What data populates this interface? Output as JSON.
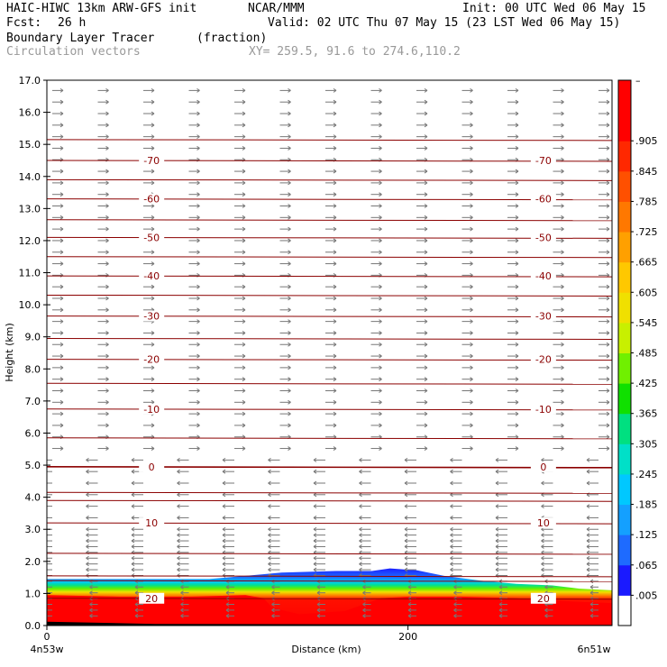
{
  "header": {
    "model": "HAIC-HIWC 13km ARW-GFS init",
    "org": "NCAR/MMM",
    "init": "Init: 00 UTC Wed 06 May 15",
    "fcst_label": "Fcst:",
    "fcst_value": "26 h",
    "valid": "Valid: 02 UTC Thu 07 May 15 (23 LST Wed 06 May 15)",
    "field": "Boundary Layer Tracer",
    "units": "(fraction)",
    "overlay": "Circulation vectors",
    "xy": "XY= 259.5, 91.6 to 274.6,110.2"
  },
  "chart_data": {
    "type": "heatmap",
    "title": "Boundary Layer Tracer",
    "xlabel": "Distance (km)",
    "ylabel": "Height (km)",
    "xlim": [
      0,
      313
    ],
    "ylim": [
      0,
      17
    ],
    "x_ticks": [
      {
        "value": 0,
        "label": "0"
      },
      {
        "value": 200,
        "label": "200"
      }
    ],
    "x_end_labels": {
      "left": "4n53w",
      "right": "6n51w"
    },
    "y_ticks": [
      "0.0",
      "1.0",
      "2.0",
      "3.0",
      "4.0",
      "5.0",
      "6.0",
      "7.0",
      "8.0",
      "9.0",
      "10.0",
      "11.0",
      "12.0",
      "13.0",
      "14.0",
      "15.0",
      "16.0",
      "17.0"
    ],
    "colorbar": {
      "labels": [
        ".005",
        ".065",
        ".125",
        ".185",
        ".245",
        ".305",
        ".365",
        ".425",
        ".485",
        ".545",
        ".605",
        ".665",
        ".725",
        ".785",
        ".845",
        ".905"
      ],
      "top_label": "–",
      "colors": [
        "#ffffff",
        "#1a1aff",
        "#1e6bff",
        "#14a0ff",
        "#00c8ff",
        "#00e0c8",
        "#00e080",
        "#10e000",
        "#70f000",
        "#c8f000",
        "#f0e000",
        "#ffc800",
        "#ffa000",
        "#ff7800",
        "#ff5000",
        "#ff2800",
        "#ff0000",
        "#ff0000"
      ]
    },
    "temperature_contours": [
      {
        "label": "20",
        "height": 0.85
      },
      {
        "label": "10",
        "height": 3.2
      },
      {
        "label": "0",
        "height": 4.95
      },
      {
        "label": "-10",
        "height": 6.75
      },
      {
        "label": "-20",
        "height": 8.3
      },
      {
        "label": "-30",
        "height": 9.65
      },
      {
        "label": "-40",
        "height": 10.9
      },
      {
        "label": "-50",
        "height": 12.1
      },
      {
        "label": "-60",
        "height": 13.3
      },
      {
        "label": "-70",
        "height": 14.5
      }
    ],
    "tracer_top_km": [
      [
        0,
        1.45
      ],
      [
        30,
        1.45
      ],
      [
        60,
        1.45
      ],
      [
        90,
        1.45
      ],
      [
        110,
        1.55
      ],
      [
        130,
        1.65
      ],
      [
        160,
        1.7
      ],
      [
        180,
        1.7
      ],
      [
        190,
        1.78
      ],
      [
        205,
        1.72
      ],
      [
        220,
        1.55
      ],
      [
        240,
        1.4
      ],
      [
        260,
        1.3
      ],
      [
        280,
        1.25
      ],
      [
        295,
        1.15
      ],
      [
        313,
        1.1
      ]
    ],
    "red_top_km": [
      [
        0,
        0.95
      ],
      [
        40,
        0.9
      ],
      [
        80,
        0.9
      ],
      [
        110,
        0.95
      ],
      [
        120,
        0.85
      ],
      [
        125,
        0.55
      ],
      [
        140,
        0.35
      ],
      [
        165,
        0.45
      ],
      [
        185,
        0.85
      ],
      [
        200,
        0.9
      ],
      [
        230,
        0.9
      ],
      [
        260,
        0.85
      ],
      [
        290,
        0.75
      ],
      [
        313,
        0.7
      ]
    ]
  }
}
